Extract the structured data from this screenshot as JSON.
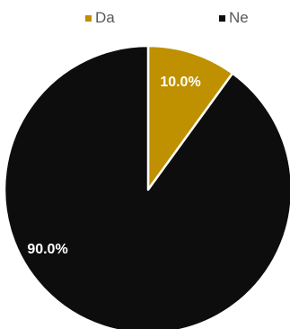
{
  "chart_data": {
    "type": "pie",
    "title": "",
    "categories": [
      "Da",
      "Ne"
    ],
    "values": [
      10.0,
      90.0
    ],
    "labels": [
      "10.0%",
      "90.0%"
    ],
    "colors": [
      "#bf9000",
      "#0d0d0d"
    ],
    "start_angle": "12 o'clock",
    "direction": "clockwise",
    "legend": "top"
  },
  "legend": {
    "items": [
      {
        "label": "Da",
        "color": "#bf9000"
      },
      {
        "label": "Ne",
        "color": "#0d0d0d"
      }
    ]
  }
}
